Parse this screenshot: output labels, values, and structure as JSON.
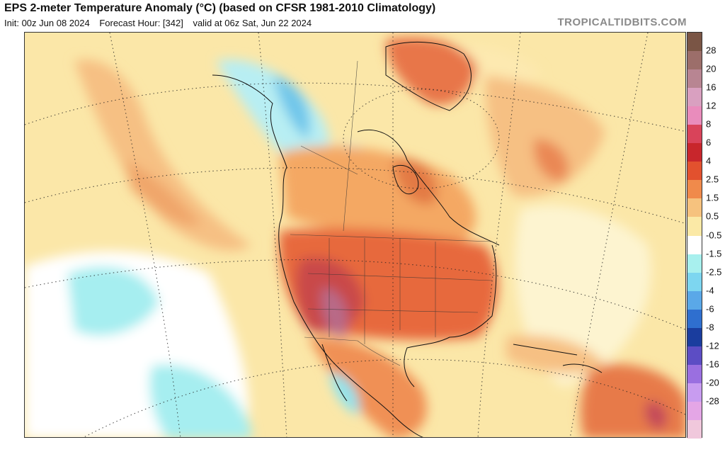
{
  "header": {
    "title": "EPS 2-meter Temperature Anomaly (°C) (based on CFSR 1981-2010 Climatology)",
    "init": "Init: 00z Jun 08 2024",
    "forecast_hour": "Forecast Hour: [342]",
    "valid": "valid at 06z Sat, Jun 22 2024",
    "watermark": "TROPICALTIDBITS.COM"
  },
  "colorbar": {
    "labels": [
      "28",
      "20",
      "16",
      "12",
      "8",
      "6",
      "4",
      "2.5",
      "1.5",
      "0.5",
      "-0.5",
      "-1.5",
      "-2.5",
      "-4",
      "-6",
      "-8",
      "-12",
      "-16",
      "-20",
      "-28"
    ],
    "colors": [
      "#7a5545",
      "#9c6e6a",
      "#b88592",
      "#d9a0c0",
      "#e98cbc",
      "#d9435a",
      "#c8262c",
      "#e2512e",
      "#f08a4b",
      "#f6c27e",
      "#fbe9a6",
      "#ffffff",
      "#a8f0ee",
      "#7dd6f0",
      "#5aa8e8",
      "#2f6fcf",
      "#1a3d9e",
      "#5c4dc4",
      "#9a6fe0",
      "#c89cf0",
      "#e4a6e6",
      "#f0c8dc"
    ]
  },
  "map": {
    "region": "North America"
  }
}
